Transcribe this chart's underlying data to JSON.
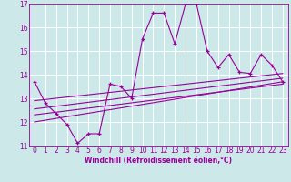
{
  "xlabel": "Windchill (Refroidissement éolien,°C)",
  "bg_color": "#cce8e8",
  "grid_color": "#ffffff",
  "line_color": "#990099",
  "x_range": [
    -0.5,
    23.5
  ],
  "y_range": [
    11,
    17
  ],
  "x_ticks": [
    0,
    1,
    2,
    3,
    4,
    5,
    6,
    7,
    8,
    9,
    10,
    11,
    12,
    13,
    14,
    15,
    16,
    17,
    18,
    19,
    20,
    21,
    22,
    23
  ],
  "y_ticks": [
    11,
    12,
    13,
    14,
    15,
    16,
    17
  ],
  "series1_x": [
    0,
    1,
    2,
    3,
    4,
    5,
    6,
    7,
    8,
    9,
    10,
    11,
    12,
    13,
    14,
    15,
    16,
    17,
    18,
    19,
    20,
    21,
    22,
    23
  ],
  "series1_y": [
    13.7,
    12.8,
    12.35,
    11.9,
    11.1,
    11.5,
    11.5,
    13.6,
    13.5,
    13.0,
    15.5,
    16.6,
    16.6,
    15.3,
    17.0,
    17.0,
    15.0,
    14.3,
    14.85,
    14.1,
    14.05,
    14.85,
    14.4,
    13.7
  ],
  "series2_x": [
    0,
    23
  ],
  "series2_y": [
    12.0,
    13.7
  ],
  "series3_x": [
    0,
    23
  ],
  "series3_y": [
    12.3,
    13.6
  ],
  "series4_x": [
    0,
    23
  ],
  "series4_y": [
    12.55,
    13.85
  ],
  "series5_x": [
    0,
    23
  ],
  "series5_y": [
    12.9,
    14.05
  ],
  "tick_fontsize": 5.5,
  "xlabel_fontsize": 5.5,
  "marker_size": 3,
  "linewidth": 0.8
}
